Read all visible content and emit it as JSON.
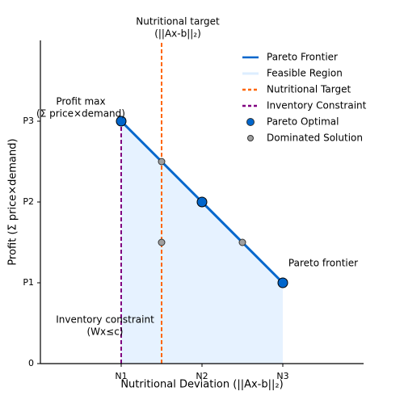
{
  "chart_data": {
    "type": "line",
    "x_label": "Nutritional Deviation (||Ax-b||₂)",
    "y_label": "Profit (Σ price×demand)",
    "xlim": [
      0,
      4
    ],
    "ylim": [
      0,
      4
    ],
    "xticks": [
      {
        "value": 1,
        "label": "N1"
      },
      {
        "value": 2,
        "label": "N2"
      },
      {
        "value": 3,
        "label": "N3"
      }
    ],
    "yticks": [
      0,
      {
        "value": 1,
        "label": "P1"
      },
      {
        "value": 2,
        "label": "P2"
      },
      {
        "value": 3,
        "label": "P3"
      }
    ],
    "legend": "upper right",
    "series": [
      {
        "name": "Pareto Frontier",
        "kind": "line",
        "color": "#0066cc",
        "x": [
          1,
          2,
          3
        ],
        "values": [
          3,
          2,
          1
        ]
      },
      {
        "name": "Feasible Region",
        "kind": "area",
        "color": "#ddeeff",
        "x": [
          1,
          2,
          3
        ],
        "values": [
          3,
          2,
          1
        ]
      },
      {
        "name": "Nutritional Target",
        "kind": "vline",
        "color": "#ff6600",
        "x": 1.5
      },
      {
        "name": "Inventory Constraint",
        "kind": "vline",
        "color": "#800080",
        "x": 1,
        "y": [
          0,
          3
        ]
      },
      {
        "name": "Pareto Optimal",
        "kind": "scatter",
        "color": "#0066cc",
        "x": [
          1,
          2,
          3
        ],
        "values": [
          3,
          2,
          1
        ]
      },
      {
        "name": "Dominated Solution",
        "kind": "scatter",
        "color": "#a0a0a0",
        "x": [
          1.5,
          1.5,
          2.5
        ],
        "values": [
          2.5,
          1.5,
          1.5
        ]
      }
    ],
    "annotations": [
      {
        "lines": [
          "Nutritional target",
          "(||Ax-b||₂)"
        ]
      },
      {
        "lines": [
          "Profit max",
          "(Σ price×demand)"
        ]
      },
      {
        "lines": [
          "Pareto frontier"
        ]
      },
      {
        "lines": [
          "Inventory constraint",
          "(Wx≤c)"
        ]
      }
    ]
  }
}
